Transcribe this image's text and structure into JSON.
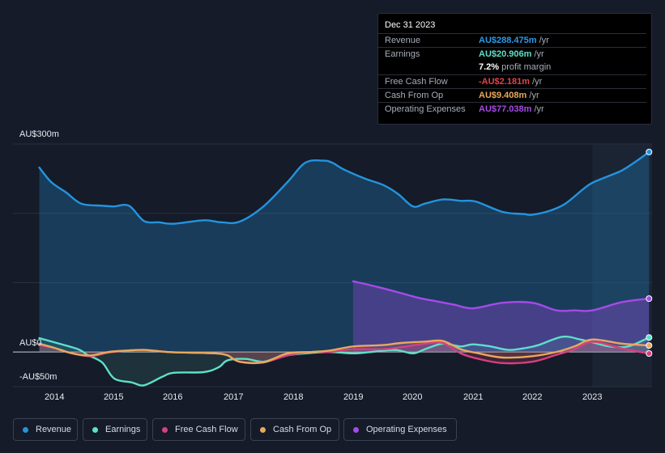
{
  "chart_data": {
    "type": "area",
    "ylim": [
      -50,
      300
    ],
    "y_tick_labels": [
      "AU$300m",
      "AU$0",
      "-AU$50m"
    ],
    "x_tick_labels": [
      "2014",
      "2015",
      "2016",
      "2017",
      "2018",
      "2019",
      "2020",
      "2021",
      "2022",
      "2023"
    ],
    "forecast_start": 2023.0,
    "series": [
      {
        "name": "Revenue",
        "color": "#2394df",
        "points": [
          [
            2013.75,
            266
          ],
          [
            2013.95,
            245
          ],
          [
            2014.2,
            230
          ],
          [
            2014.45,
            214
          ],
          [
            2014.8,
            211
          ],
          [
            2015.0,
            210
          ],
          [
            2015.25,
            211
          ],
          [
            2015.5,
            189
          ],
          [
            2015.75,
            187
          ],
          [
            2016.0,
            185
          ],
          [
            2016.5,
            190
          ],
          [
            2016.8,
            187
          ],
          [
            2017.1,
            188
          ],
          [
            2017.5,
            210
          ],
          [
            2017.9,
            245
          ],
          [
            2018.2,
            273
          ],
          [
            2018.5,
            276
          ],
          [
            2018.65,
            273
          ],
          [
            2018.85,
            263
          ],
          [
            2019.2,
            250
          ],
          [
            2019.5,
            241
          ],
          [
            2019.75,
            228
          ],
          [
            2020.0,
            210
          ],
          [
            2020.2,
            214
          ],
          [
            2020.5,
            220
          ],
          [
            2020.8,
            218
          ],
          [
            2021.05,
            217
          ],
          [
            2021.5,
            202
          ],
          [
            2021.85,
            199
          ],
          [
            2022.0,
            198
          ],
          [
            2022.3,
            204
          ],
          [
            2022.55,
            214
          ],
          [
            2022.85,
            235
          ],
          [
            2023.0,
            244
          ],
          [
            2023.25,
            253
          ],
          [
            2023.5,
            262
          ],
          [
            2023.75,
            276
          ],
          [
            2023.95,
            288.475
          ]
        ]
      },
      {
        "name": "Operating Expenses",
        "color": "#a64ae8",
        "points": [
          [
            2019.0,
            102
          ],
          [
            2019.4,
            94
          ],
          [
            2019.8,
            85
          ],
          [
            2020.1,
            78
          ],
          [
            2020.4,
            73
          ],
          [
            2020.7,
            68
          ],
          [
            2021.0,
            63
          ],
          [
            2021.5,
            71
          ],
          [
            2022.0,
            71
          ],
          [
            2022.4,
            60
          ],
          [
            2022.7,
            60
          ],
          [
            2023.0,
            60
          ],
          [
            2023.5,
            72
          ],
          [
            2023.95,
            77.038
          ]
        ]
      },
      {
        "name": "Earnings",
        "color": "#5ee0c9",
        "points": [
          [
            2013.75,
            20
          ],
          [
            2014.0,
            14
          ],
          [
            2014.4,
            4
          ],
          [
            2014.55,
            -4
          ],
          [
            2014.8,
            -15
          ],
          [
            2015.0,
            -38
          ],
          [
            2015.3,
            -44
          ],
          [
            2015.5,
            -48
          ],
          [
            2015.8,
            -36
          ],
          [
            2016.0,
            -30
          ],
          [
            2016.5,
            -29
          ],
          [
            2016.75,
            -22
          ],
          [
            2016.9,
            -12
          ],
          [
            2017.2,
            -10
          ],
          [
            2017.5,
            -14
          ],
          [
            2017.8,
            -6
          ],
          [
            2018.2,
            -2
          ],
          [
            2018.6,
            0
          ],
          [
            2019.0,
            -2
          ],
          [
            2019.3,
            0
          ],
          [
            2019.7,
            3
          ],
          [
            2020.0,
            -2
          ],
          [
            2020.2,
            4
          ],
          [
            2020.5,
            12
          ],
          [
            2020.8,
            8
          ],
          [
            2021.0,
            11
          ],
          [
            2021.3,
            8
          ],
          [
            2021.6,
            3
          ],
          [
            2021.9,
            6
          ],
          [
            2022.1,
            10
          ],
          [
            2022.5,
            22
          ],
          [
            2022.8,
            18
          ],
          [
            2023.0,
            14
          ],
          [
            2023.3,
            8
          ],
          [
            2023.6,
            8
          ],
          [
            2023.95,
            20.906
          ]
        ]
      },
      {
        "name": "Free Cash Flow",
        "color": "#d6407e",
        "points": [
          [
            2013.75,
            10
          ],
          [
            2014.0,
            6
          ],
          [
            2014.3,
            -2
          ],
          [
            2014.6,
            -6
          ],
          [
            2014.9,
            -1
          ],
          [
            2015.2,
            2
          ],
          [
            2015.5,
            3
          ],
          [
            2015.9,
            0
          ],
          [
            2016.3,
            -1
          ],
          [
            2016.7,
            -2
          ],
          [
            2016.9,
            -5
          ],
          [
            2017.1,
            -14
          ],
          [
            2017.5,
            -15
          ],
          [
            2017.9,
            -5
          ],
          [
            2018.3,
            0
          ],
          [
            2018.6,
            0
          ],
          [
            2019.0,
            4
          ],
          [
            2019.5,
            4
          ],
          [
            2019.8,
            7
          ],
          [
            2020.2,
            12
          ],
          [
            2020.5,
            13
          ],
          [
            2020.8,
            -2
          ],
          [
            2021.1,
            -10
          ],
          [
            2021.5,
            -16
          ],
          [
            2022.0,
            -14
          ],
          [
            2022.4,
            -4
          ],
          [
            2022.7,
            4
          ],
          [
            2022.9,
            13
          ],
          [
            2023.1,
            14
          ],
          [
            2023.5,
            5
          ],
          [
            2023.95,
            -2.181
          ]
        ]
      },
      {
        "name": "Cash From Op",
        "color": "#e8a95c",
        "points": [
          [
            2013.75,
            12
          ],
          [
            2014.0,
            6
          ],
          [
            2014.3,
            -2
          ],
          [
            2014.6,
            -5
          ],
          [
            2014.9,
            0
          ],
          [
            2015.2,
            2
          ],
          [
            2015.5,
            3
          ],
          [
            2015.9,
            0
          ],
          [
            2016.3,
            -1
          ],
          [
            2016.7,
            -2
          ],
          [
            2016.9,
            -5
          ],
          [
            2017.1,
            -14
          ],
          [
            2017.5,
            -15
          ],
          [
            2017.9,
            -2
          ],
          [
            2018.3,
            0
          ],
          [
            2018.6,
            2
          ],
          [
            2019.0,
            8
          ],
          [
            2019.5,
            10
          ],
          [
            2019.8,
            13
          ],
          [
            2020.2,
            15
          ],
          [
            2020.5,
            16
          ],
          [
            2020.8,
            4
          ],
          [
            2021.1,
            -2
          ],
          [
            2021.5,
            -8
          ],
          [
            2022.0,
            -6
          ],
          [
            2022.4,
            0
          ],
          [
            2022.7,
            8
          ],
          [
            2023.0,
            18
          ],
          [
            2023.5,
            12
          ],
          [
            2023.95,
            9.408
          ]
        ]
      }
    ]
  },
  "tooltip": {
    "date": "Dec 31 2023",
    "rows": [
      {
        "label": "Revenue",
        "value": "AU$288.475m",
        "unit": " /yr",
        "color": "#2e9ae6"
      },
      {
        "label": "Earnings",
        "value": "AU$20.906m",
        "unit": " /yr",
        "color": "#5ee0c9"
      },
      {
        "label": "",
        "value": "7.2%",
        "unit": " profit margin",
        "color": "#ffffff"
      },
      {
        "label": "Free Cash Flow",
        "value": "-AU$2.181m",
        "unit": " /yr",
        "color": "#e5414d"
      },
      {
        "label": "Cash From Op",
        "value": "AU$9.408m",
        "unit": " /yr",
        "color": "#e8a95c"
      },
      {
        "label": "Operating Expenses",
        "value": "AU$77.038m",
        "unit": " /yr",
        "color": "#a64ae8"
      }
    ]
  },
  "legend": [
    {
      "label": "Revenue",
      "color": "#2394df"
    },
    {
      "label": "Earnings",
      "color": "#5ee0c9"
    },
    {
      "label": "Free Cash Flow",
      "color": "#d6407e"
    },
    {
      "label": "Cash From Op",
      "color": "#e8a95c"
    },
    {
      "label": "Operating Expenses",
      "color": "#a64ae8"
    }
  ]
}
